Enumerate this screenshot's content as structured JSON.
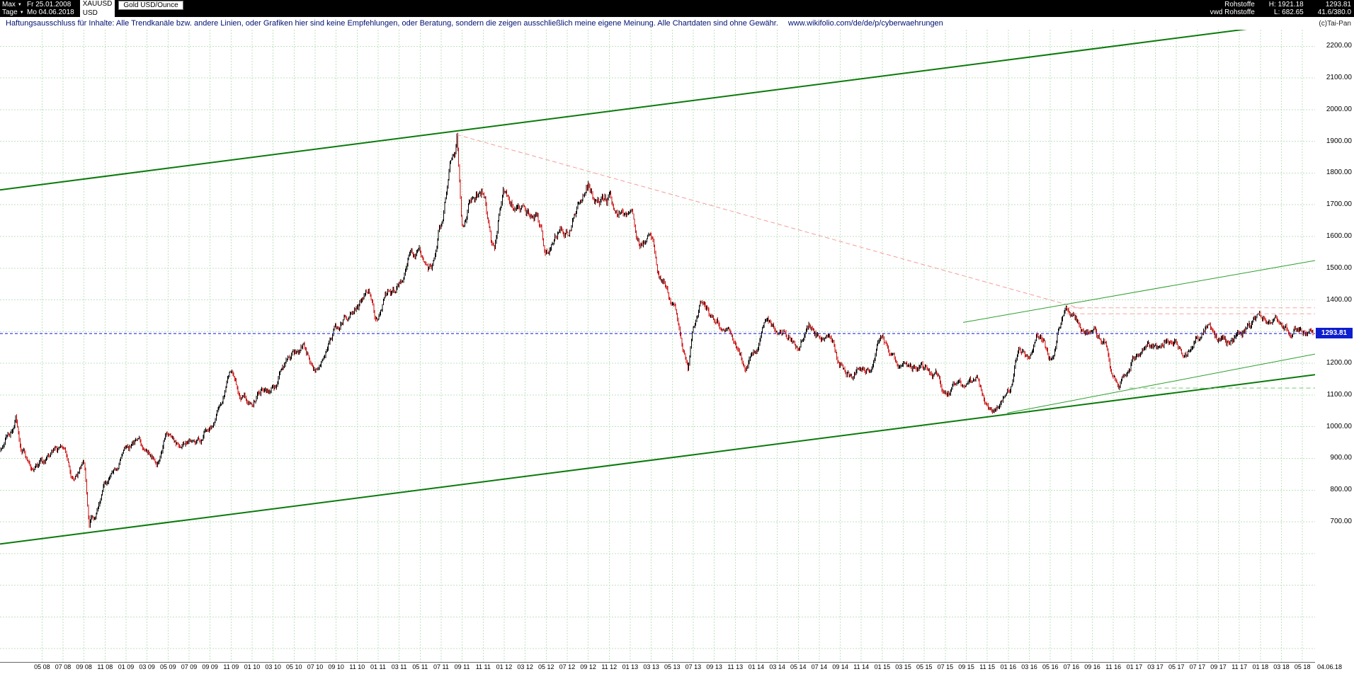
{
  "header": {
    "range_selector": "Max",
    "range_start": "Fr 25.01.2008",
    "interval_selector": "Tage",
    "range_end": "Mo 04.06.2018",
    "symbol": "XAUUSD",
    "currency": "USD",
    "instrument": "Gold USD/Ounce",
    "category": "Rohstoffe",
    "feed": "vwd Rohstoffe",
    "high": "H: 1921.18",
    "low": "L: 682.65",
    "last": "1293.81",
    "stat": "41.6/380.0",
    "copyright": "(c)Tai-Pan"
  },
  "disclaimer": {
    "text": "Haftungsausschluss für Inhalte: Alle Trendkanäle bzw. andere Linien, oder Grafiken hier sind keine Empfehlungen, oder Beratung, sondern die zeigen ausschließlich meine eigene Meinung. Alle Chartdaten sind ohne Gewähr.",
    "link": "www.wikifolio.com/de/de/p/cyberwaehrungen"
  },
  "chart_data": {
    "type": "candlestick",
    "title": "Gold USD/Ounce",
    "symbol": "XAUUSD",
    "currency": "USD",
    "period_start": "2008-01",
    "period_end": "2018-06",
    "last_close": 1293.81,
    "alltime_high": 1921.18,
    "alltime_low": 682.65,
    "grid": true,
    "xlim": [
      0,
      125.2
    ],
    "ylim": [
      258,
      2252
    ],
    "y_grid": [
      300,
      2200,
      100
    ],
    "y_ticks": [
      "700.00",
      "800.00",
      "900.00",
      "1000.00",
      "1100.00",
      "1200.00",
      "1300.00",
      "1400.00",
      "1500.00",
      "1600.00",
      "1700.00",
      "1800.00",
      "1900.00",
      "2000.00",
      "2100.00",
      "2200.00"
    ],
    "x_labels": [
      "05 08",
      "07 08",
      "09 08",
      "11 08",
      "01 09",
      "03 09",
      "05 09",
      "07 09",
      "09 09",
      "11 09",
      "01 10",
      "03 10",
      "05 10",
      "07 10",
      "09 10",
      "11 10",
      "01 11",
      "03 11",
      "05 11",
      "07 11",
      "09 11",
      "11 11",
      "01 12",
      "03 12",
      "05 12",
      "07 12",
      "09 12",
      "11 12",
      "01 13",
      "03 13",
      "05 13",
      "07 13",
      "09 13",
      "11 13",
      "01 14",
      "03 14",
      "05 14",
      "07 14",
      "09 14",
      "11 14",
      "01 15",
      "03 15",
      "05 15",
      "07 15",
      "09 15",
      "11 15",
      "01 16",
      "03 16",
      "05 16",
      "07 16",
      "09 16",
      "11 16",
      "01 17",
      "03 17",
      "05 17",
      "07 17",
      "09 17",
      "11 17",
      "01 18",
      "03 18",
      "05 18"
    ],
    "x_last_label": "04.06.18",
    "monthly_close": [
      923,
      971,
      933,
      871,
      885,
      930,
      918,
      833,
      885,
      724,
      816,
      880,
      928,
      952,
      917,
      888,
      975,
      934,
      953,
      953,
      1008,
      1045,
      1175,
      1096,
      1083,
      1118,
      1113,
      1179,
      1215,
      1244,
      1169,
      1248,
      1307,
      1357,
      1386,
      1421,
      1327,
      1411,
      1439,
      1556,
      1536,
      1500,
      1628,
      1826,
      1620,
      1722,
      1746,
      1566,
      1737,
      1711,
      1668,
      1664,
      1558,
      1598,
      1615,
      1692,
      1772,
      1720,
      1714,
      1676,
      1661,
      1580,
      1597,
      1469,
      1394,
      1235,
      1312,
      1396,
      1329,
      1324,
      1253,
      1202,
      1244,
      1326,
      1284,
      1288,
      1250,
      1327,
      1282,
      1287,
      1208,
      1173,
      1175,
      1184,
      1283,
      1213,
      1184,
      1184,
      1190,
      1171,
      1096,
      1135,
      1115,
      1142,
      1065,
      1061,
      1118,
      1234,
      1232,
      1293,
      1215,
      1322,
      1351,
      1309,
      1316,
      1272,
      1178,
      1152,
      1211,
      1249,
      1249,
      1268,
      1269,
      1242,
      1269,
      1321,
      1280,
      1271,
      1275,
      1303,
      1345,
      1318,
      1325,
      1315,
      1298,
      1293.81
    ],
    "extremes": [
      {
        "date": "2008-03",
        "price": 1033.9
      },
      {
        "date": "2008-10",
        "price": 682.65
      },
      {
        "date": "2011-09",
        "price": 1921.18
      },
      {
        "date": "2013-07",
        "price": 1181
      },
      {
        "date": "2015-12",
        "price": 1046
      },
      {
        "date": "2016-07",
        "price": 1375
      },
      {
        "date": "2016-12",
        "price": 1122
      }
    ],
    "trendlines": [
      {
        "name": "channel-upper-line",
        "color": "#0a7a0a",
        "width": 2,
        "dash": "",
        "from": [
          0,
          1747
        ],
        "to": [
          125.2,
          2282
        ]
      },
      {
        "name": "channel-lower-line",
        "color": "#0a7a0a",
        "width": 2,
        "dash": "",
        "from": [
          0,
          630
        ],
        "to": [
          125.2,
          1164
        ]
      },
      {
        "name": "downtrend-2011-line",
        "color": "#f49c9c",
        "width": 1,
        "dash": "6,4",
        "from": [
          43.5,
          1921
        ],
        "to": [
          103,
          1372
        ]
      },
      {
        "name": "resistance-upper-line",
        "color": "#f4a8a8",
        "width": 1,
        "dash": "6,4",
        "from": [
          101.5,
          1375
        ],
        "to": [
          125.2,
          1375
        ]
      },
      {
        "name": "resistance-lower-line",
        "color": "#f4a8a8",
        "width": 1,
        "dash": "6,4",
        "from": [
          101.5,
          1356
        ],
        "to": [
          125.2,
          1356
        ]
      },
      {
        "name": "minor-uptrend-upper-line",
        "color": "#2e9e2e",
        "width": 1,
        "dash": "",
        "from": [
          91.7,
          1329
        ],
        "to": [
          125.2,
          1524
        ]
      },
      {
        "name": "minor-uptrend-lower-line",
        "color": "#2e9e2e",
        "width": 1,
        "dash": "",
        "from": [
          95.9,
          1043
        ],
        "to": [
          125.2,
          1229
        ]
      },
      {
        "name": "support-dashed-line",
        "color": "#79c979",
        "width": 1,
        "dash": "6,4",
        "from": [
          107.5,
          1122
        ],
        "to": [
          125.2,
          1122
        ]
      },
      {
        "name": "last-price-line",
        "color": "#1414dd",
        "width": 1,
        "dash": "4,3",
        "from": [
          0,
          1293.81
        ],
        "to": [
          125.2,
          1293.81
        ]
      }
    ],
    "colors": {
      "candle_up": "#000000",
      "candle_down": "#cc1111",
      "grid": "#bfe2bf",
      "badge": "#0d1ecf"
    }
  }
}
